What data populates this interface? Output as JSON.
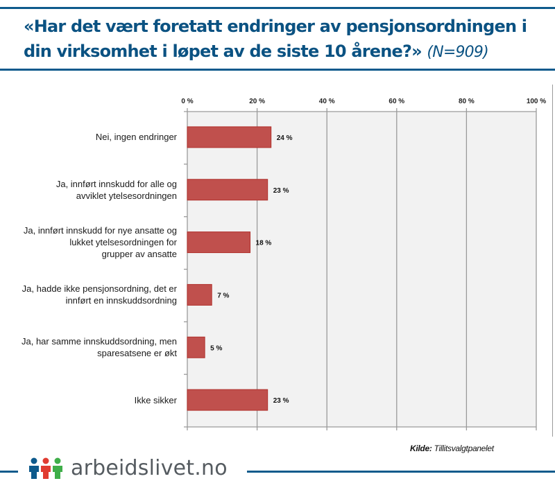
{
  "header": {
    "title": "«Har det vært foretatt endringer av pensjonsordningen i din virksomhet i løpet av de siste 10 årene?»",
    "sample": "(N=909)"
  },
  "chart_data": {
    "type": "bar",
    "orientation": "horizontal",
    "title": "«Har det vært foretatt endringer av pensjonsordningen i din virksomhet i løpet av de siste 10 årene?» (N=909)",
    "xlabel": "",
    "ylabel": "",
    "xlim": [
      0,
      100
    ],
    "x_ticks": [
      0,
      20,
      40,
      60,
      80,
      100
    ],
    "x_tick_labels": [
      "0 %",
      "20 %",
      "40 %",
      "60 %",
      "80 %",
      "100 %"
    ],
    "x_axis_position": "top",
    "grid": true,
    "legend": "none",
    "categories": [
      [
        "Nei, ingen endringer"
      ],
      [
        "Ja, innført innskudd for alle og",
        "avviklet ytelsesordningen"
      ],
      [
        "Ja, innført innskudd for nye ansatte og",
        "lukket ytelsesordningen for",
        "grupper av ansatte"
      ],
      [
        "Ja, hadde ikke pensjonsordning, det er",
        "innført en innskuddsordning"
      ],
      [
        "Ja, har samme innskuddsordning, men",
        "sparesatsene er økt"
      ],
      [
        "Ikke sikker"
      ]
    ],
    "values": [
      24,
      23,
      18,
      7,
      5,
      23
    ],
    "data_labels": [
      "24 %",
      "23 %",
      "18 %",
      "7 %",
      "5 %",
      "23 %"
    ],
    "bar_color": "#c0504d",
    "plot_background": "#f2f2f2"
  },
  "footer": {
    "source_label": "Kilde:",
    "source_value": "Tillitsvalgtpanelet",
    "brand": "arbeidslivet.no",
    "brand_colors": [
      "#0d5a8c",
      "#e03c31",
      "#3fae49"
    ]
  },
  "colors": {
    "header_text": "#0b5282",
    "rule": "#0d5a8c"
  }
}
